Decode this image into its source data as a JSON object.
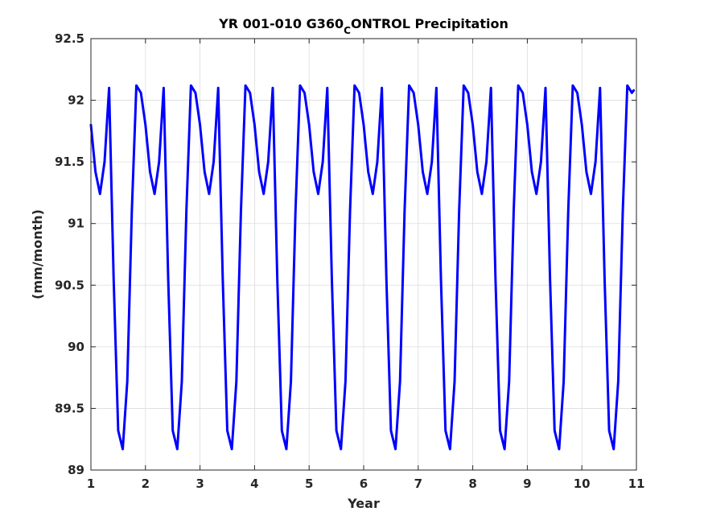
{
  "chart_data": {
    "type": "line",
    "title": {
      "main": "YR 001-010 G360",
      "subscript": "C",
      "rest": "ONTROL Precipitation"
    },
    "xlabel": "Year",
    "ylabel": "(mm/month)",
    "xlim": [
      1,
      11
    ],
    "ylim": [
      89,
      92.5
    ],
    "xticks": [
      "1",
      "2",
      "3",
      "4",
      "5",
      "6",
      "7",
      "8",
      "9",
      "10",
      "11"
    ],
    "yticks": [
      "89",
      "89.5",
      "90",
      "90.5",
      "91",
      "91.5",
      "92",
      "92.5"
    ],
    "grid": true,
    "series": [
      {
        "color": "#0000ff",
        "monthly_cycle": [
          91.8,
          91.42,
          91.24,
          91.5,
          92.1,
          90.55,
          89.32,
          89.17,
          89.72,
          91.1,
          92.12,
          92.06
        ],
        "years": 10,
        "x_start": 1,
        "x_step": 0.08333333,
        "final_value": 92.08
      }
    ]
  }
}
